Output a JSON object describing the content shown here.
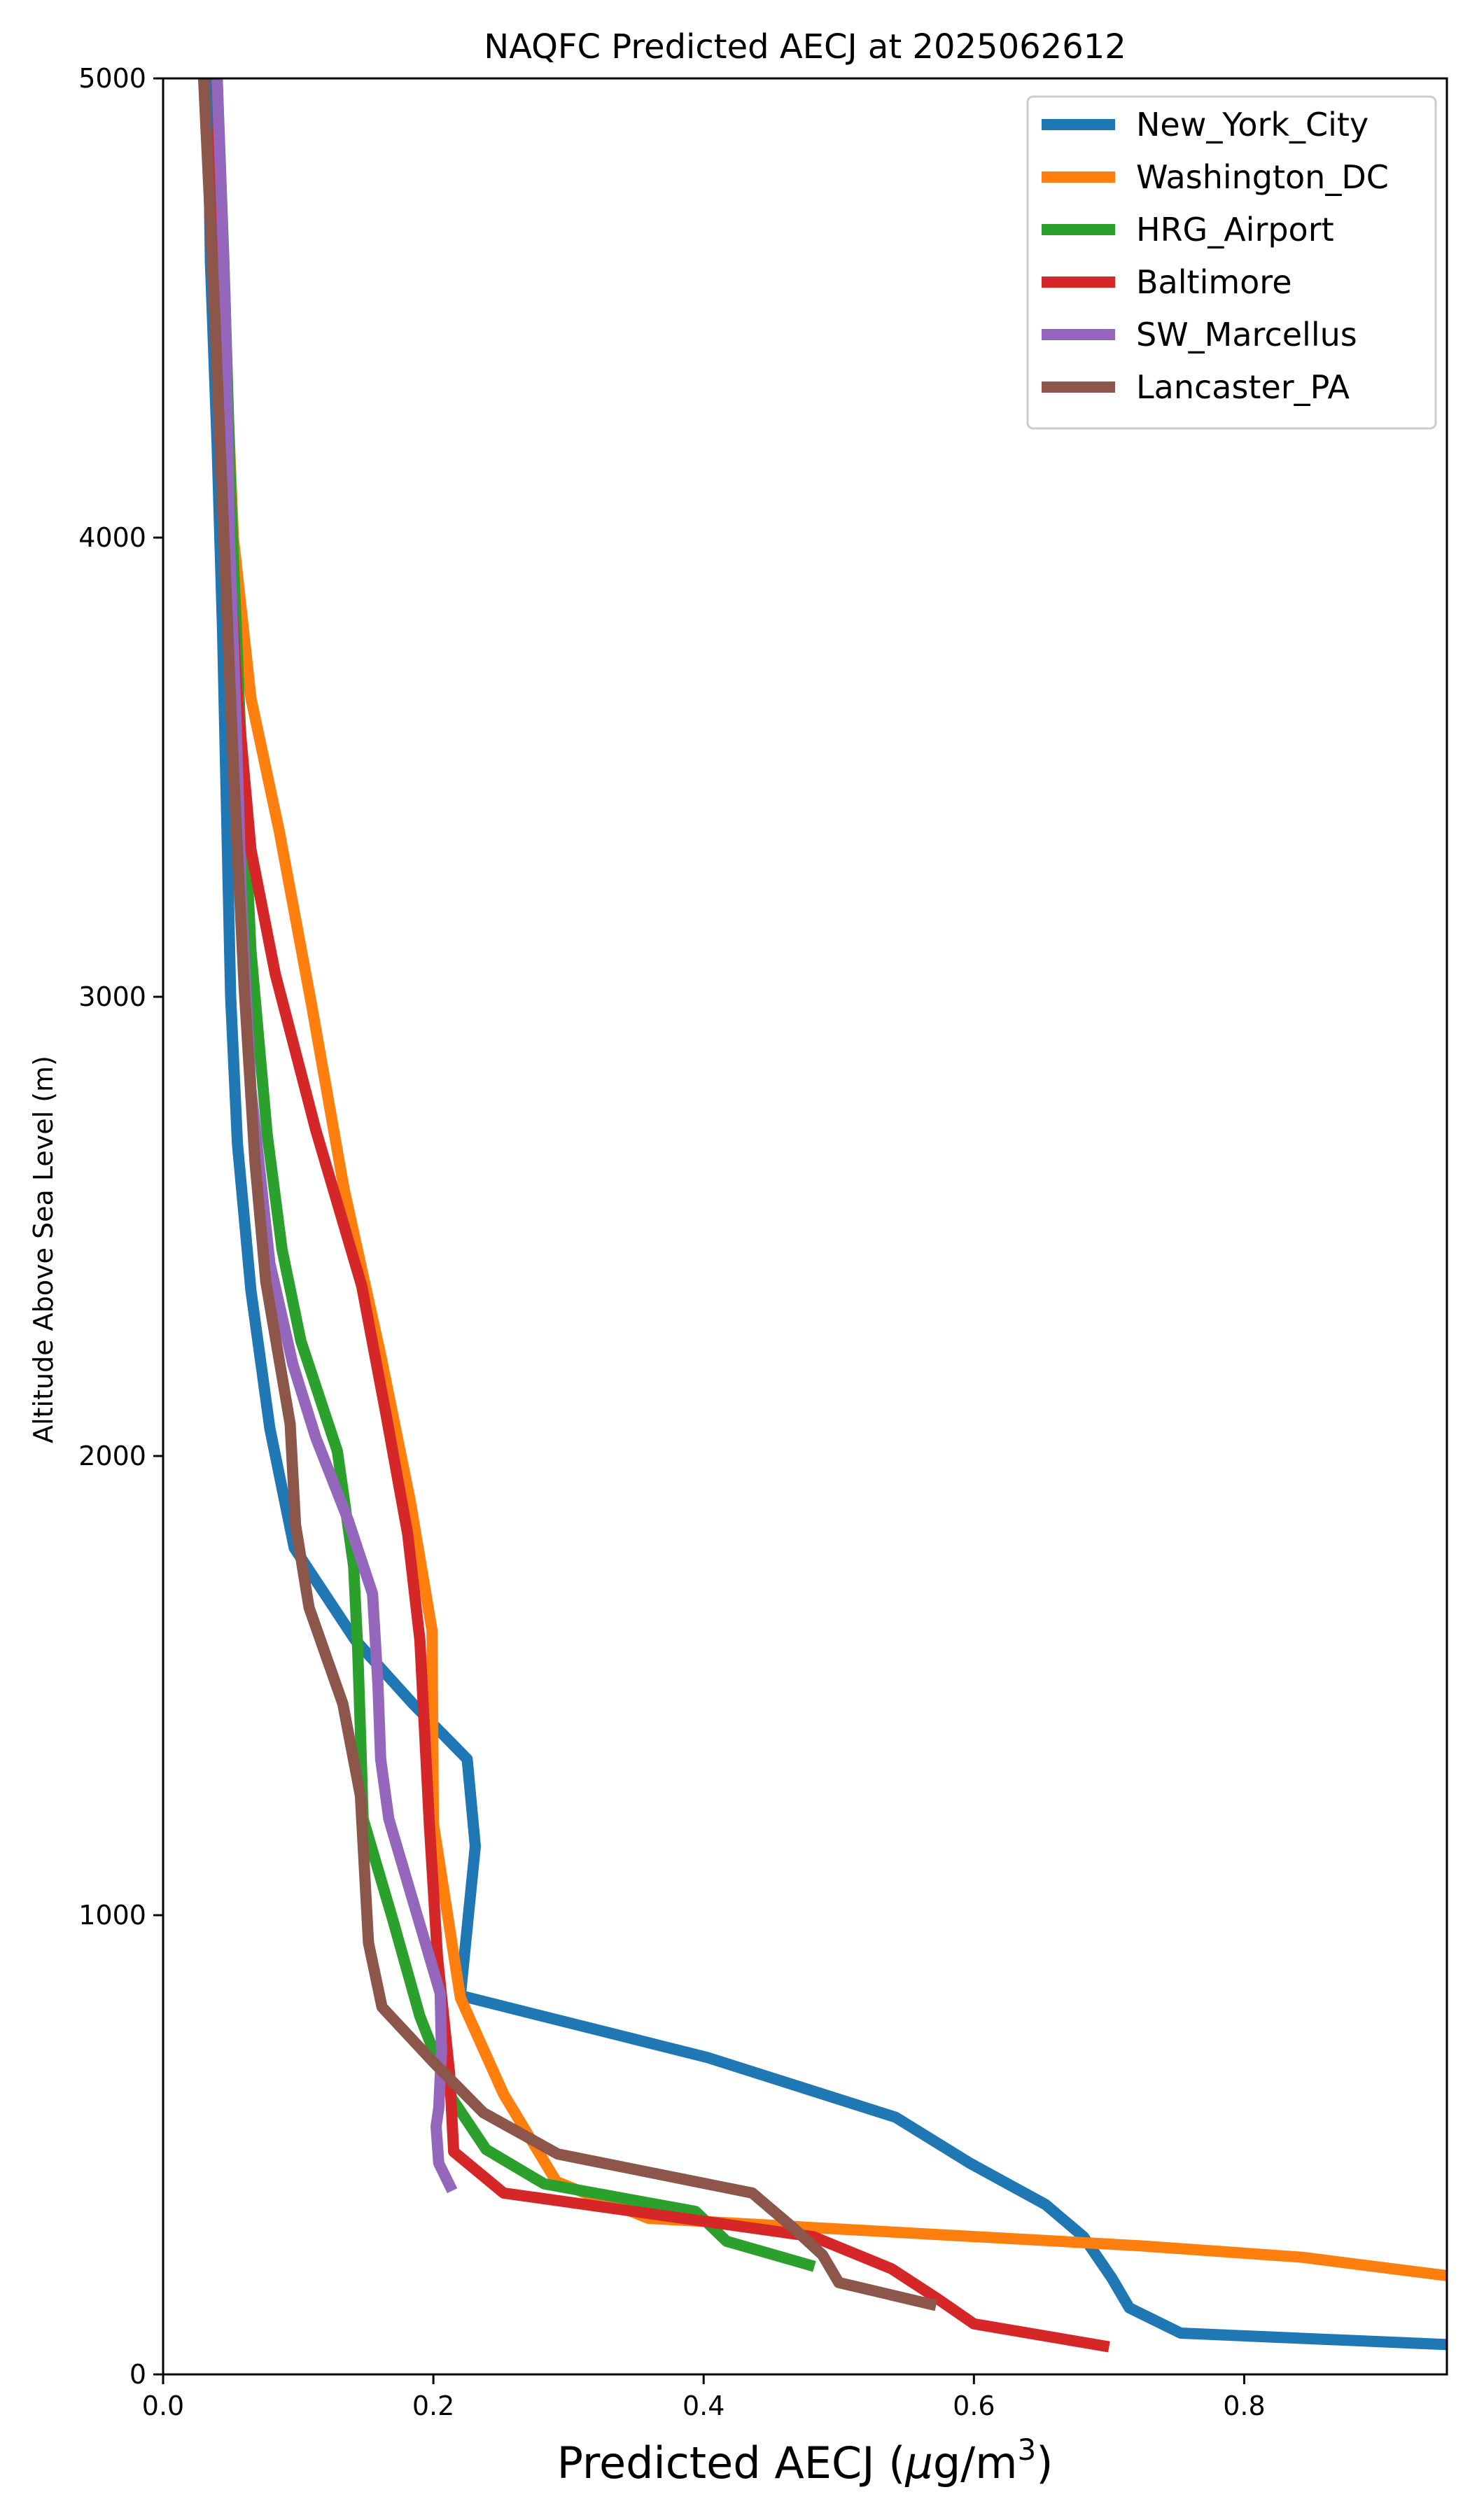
{
  "chart_data": {
    "type": "line",
    "title": "NAQFC Predicted AECJ at 2025062612",
    "xlabel": "Predicted AECJ (μg/m³)",
    "ylabel": "Altitude Above Sea Level (m)",
    "xlim": [
      0.0,
      0.95
    ],
    "ylim": [
      0,
      5000
    ],
    "xticks": [
      0.0,
      0.2,
      0.4,
      0.6,
      0.8
    ],
    "xtick_labels": [
      "0.0",
      "0.2",
      "0.4",
      "0.6",
      "0.8"
    ],
    "yticks": [
      0,
      1000,
      2000,
      3000,
      4000,
      5000
    ],
    "ytick_labels": [
      "0",
      "1000",
      "2000",
      "3000",
      "4000",
      "5000"
    ],
    "grid": false,
    "legend_position": "upper right",
    "series": [
      {
        "name": "New_York_City",
        "color": "#1f77b4",
        "points": [
          [
            0.95,
            65
          ],
          [
            0.753,
            90
          ],
          [
            0.715,
            145
          ],
          [
            0.702,
            210
          ],
          [
            0.681,
            300
          ],
          [
            0.653,
            370
          ],
          [
            0.597,
            460
          ],
          [
            0.542,
            560
          ],
          [
            0.403,
            690
          ],
          [
            0.22,
            825
          ],
          [
            0.231,
            1150
          ],
          [
            0.225,
            1340
          ],
          [
            0.185,
            1460
          ],
          [
            0.142,
            1600
          ],
          [
            0.097,
            1800
          ],
          [
            0.079,
            2060
          ],
          [
            0.065,
            2360
          ],
          [
            0.055,
            2680
          ],
          [
            0.05,
            3000
          ],
          [
            0.047,
            3400
          ],
          [
            0.044,
            3800
          ],
          [
            0.04,
            4200
          ],
          [
            0.035,
            4600
          ],
          [
            0.033,
            5000
          ]
        ]
      },
      {
        "name": "Washington_DC",
        "color": "#ff7f0e",
        "points": [
          [
            0.95,
            215
          ],
          [
            0.843,
            255
          ],
          [
            0.723,
            280
          ],
          [
            0.601,
            300
          ],
          [
            0.479,
            320
          ],
          [
            0.359,
            340
          ],
          [
            0.291,
            420
          ],
          [
            0.252,
            610
          ],
          [
            0.22,
            820
          ],
          [
            0.2,
            1200
          ],
          [
            0.199,
            1620
          ],
          [
            0.183,
            1900
          ],
          [
            0.161,
            2220
          ],
          [
            0.134,
            2580
          ],
          [
            0.11,
            2980
          ],
          [
            0.086,
            3360
          ],
          [
            0.065,
            3650
          ],
          [
            0.052,
            4000
          ],
          [
            0.045,
            4500
          ],
          [
            0.04,
            5000
          ]
        ]
      },
      {
        "name": "HRG_Airport",
        "color": "#2ca02c",
        "points": [
          [
            0.482,
            235
          ],
          [
            0.417,
            290
          ],
          [
            0.394,
            355
          ],
          [
            0.282,
            415
          ],
          [
            0.239,
            490
          ],
          [
            0.214,
            600
          ],
          [
            0.19,
            780
          ],
          [
            0.17,
            990
          ],
          [
            0.148,
            1210
          ],
          [
            0.146,
            1400
          ],
          [
            0.144,
            1580
          ],
          [
            0.141,
            1760
          ],
          [
            0.129,
            2010
          ],
          [
            0.102,
            2250
          ],
          [
            0.088,
            2450
          ],
          [
            0.077,
            2700
          ],
          [
            0.065,
            3100
          ],
          [
            0.057,
            3600
          ],
          [
            0.05,
            4100
          ],
          [
            0.045,
            4600
          ],
          [
            0.04,
            5000
          ]
        ]
      },
      {
        "name": "Baltimore",
        "color": "#d62728",
        "points": [
          [
            0.7,
            60
          ],
          [
            0.6,
            110
          ],
          [
            0.573,
            165
          ],
          [
            0.539,
            230
          ],
          [
            0.481,
            300
          ],
          [
            0.252,
            395
          ],
          [
            0.215,
            485
          ],
          [
            0.212,
            655
          ],
          [
            0.203,
            910
          ],
          [
            0.197,
            1200
          ],
          [
            0.19,
            1600
          ],
          [
            0.181,
            1830
          ],
          [
            0.165,
            2090
          ],
          [
            0.147,
            2370
          ],
          [
            0.113,
            2710
          ],
          [
            0.083,
            3050
          ],
          [
            0.065,
            3320
          ],
          [
            0.055,
            3650
          ],
          [
            0.048,
            4000
          ],
          [
            0.043,
            4500
          ],
          [
            0.04,
            5000
          ]
        ]
      },
      {
        "name": "SW_Marcellus",
        "color": "#9467bd",
        "points": [
          [
            0.214,
            400
          ],
          [
            0.204,
            460
          ],
          [
            0.202,
            540
          ],
          [
            0.204,
            580
          ],
          [
            0.206,
            705
          ],
          [
            0.205,
            830
          ],
          [
            0.183,
            1050
          ],
          [
            0.167,
            1210
          ],
          [
            0.161,
            1340
          ],
          [
            0.159,
            1500
          ],
          [
            0.155,
            1700
          ],
          [
            0.137,
            1860
          ],
          [
            0.113,
            2040
          ],
          [
            0.096,
            2200
          ],
          [
            0.079,
            2420
          ],
          [
            0.065,
            2800
          ],
          [
            0.058,
            3200
          ],
          [
            0.054,
            3600
          ],
          [
            0.049,
            4000
          ],
          [
            0.046,
            4500
          ],
          [
            0.04,
            5000
          ]
        ]
      },
      {
        "name": "Lancaster_PA",
        "color": "#8c564b",
        "points": [
          [
            0.572,
            150
          ],
          [
            0.5,
            200
          ],
          [
            0.488,
            260
          ],
          [
            0.466,
            320
          ],
          [
            0.436,
            395
          ],
          [
            0.292,
            480
          ],
          [
            0.237,
            570
          ],
          [
            0.2,
            680
          ],
          [
            0.162,
            800
          ],
          [
            0.152,
            940
          ],
          [
            0.146,
            1260
          ],
          [
            0.133,
            1460
          ],
          [
            0.108,
            1670
          ],
          [
            0.098,
            1850
          ],
          [
            0.094,
            2070
          ],
          [
            0.076,
            2380
          ],
          [
            0.068,
            2640
          ],
          [
            0.06,
            3020
          ],
          [
            0.052,
            3500
          ],
          [
            0.045,
            4000
          ],
          [
            0.038,
            4500
          ],
          [
            0.03,
            5000
          ]
        ]
      }
    ]
  }
}
